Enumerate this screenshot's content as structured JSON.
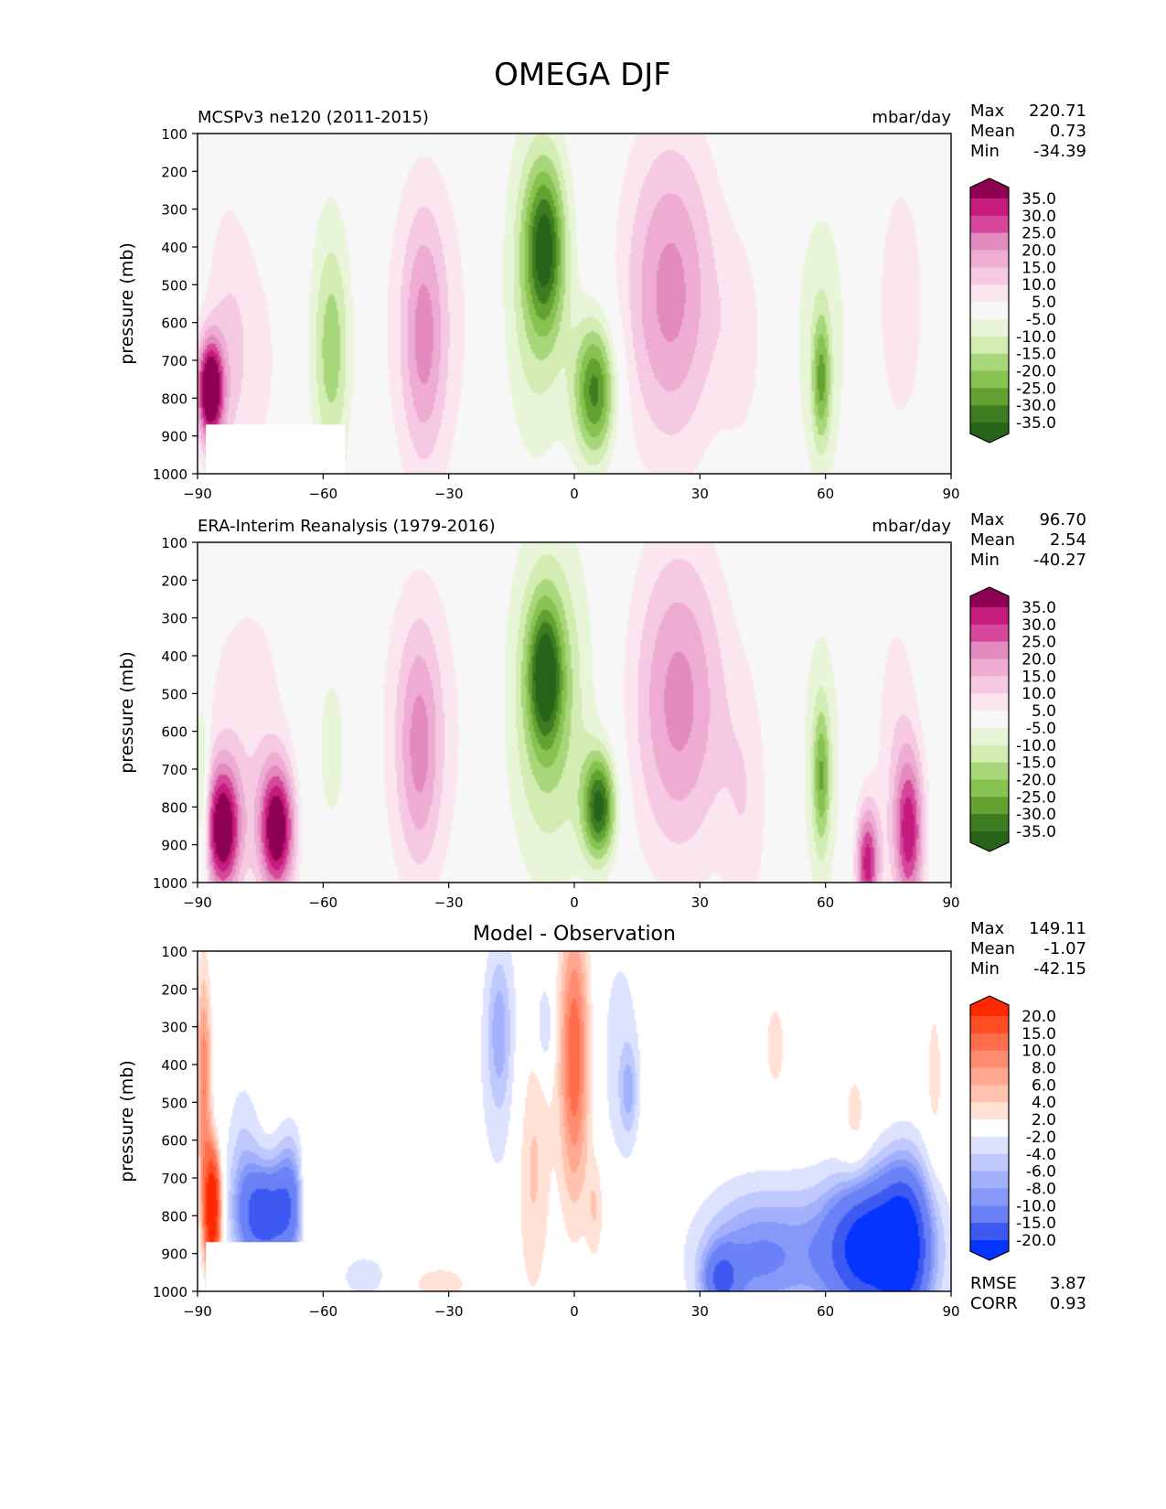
{
  "figure": {
    "title": "OMEGA DJF"
  },
  "chart_data": [
    {
      "type": "heatmap",
      "panel": "test",
      "title_left": "MCSPv3 ne120 (2011-2015)",
      "units": "mbar/day",
      "xlabel": "",
      "ylabel": "pressure (mb)",
      "x_ticks": [
        "−90",
        "−60",
        "−30",
        "0",
        "30",
        "60",
        "90"
      ],
      "x_tick_values": [
        -90,
        -60,
        -30,
        0,
        30,
        60,
        90
      ],
      "y_ticks": [
        "100",
        "200",
        "300",
        "400",
        "500",
        "600",
        "700",
        "800",
        "900",
        "1000"
      ],
      "y_tick_values": [
        100,
        200,
        300,
        400,
        500,
        600,
        700,
        800,
        900,
        1000
      ],
      "xlim": [
        -90,
        90
      ],
      "ylim": [
        1000,
        100
      ],
      "stats": [
        {
          "label": "Max",
          "value": "220.71"
        },
        {
          "label": "Mean",
          "value": "0.73"
        },
        {
          "label": "Min",
          "value": "-34.39"
        }
      ],
      "colorbar": {
        "labels": [
          "35.0",
          "30.0",
          "25.0",
          "20.0",
          "15.0",
          "10.0",
          "5.0",
          "-5.0",
          "-10.0",
          "-15.0",
          "-20.0",
          "-25.0",
          "-30.0",
          "-35.0"
        ],
        "colors": [
          "#8e0152",
          "#c51b7d",
          "#d6479b",
          "#e38bbf",
          "#eeacd3",
          "#f5c9e2",
          "#fbe6f0",
          "#f7f7f7",
          "#e9f5d9",
          "#d2ecb2",
          "#a8d67b",
          "#88c250",
          "#64a133",
          "#3d7c20",
          "#276419"
        ]
      },
      "features": [
        {
          "lat": -87,
          "p": 780,
          "w": 2.2,
          "h": 95,
          "v": 45
        },
        {
          "lat": -83,
          "p": 650,
          "w": 4,
          "h": 300,
          "v": 8
        },
        {
          "lat": -76,
          "p": 700,
          "w": 6,
          "h": 250,
          "v": 6
        },
        {
          "lat": -58,
          "p": 620,
          "w": 5,
          "h": 330,
          "v": -7
        },
        {
          "lat": -58,
          "p": 680,
          "w": 2.8,
          "h": 190,
          "v": -12
        },
        {
          "lat": -35,
          "p": 600,
          "w": 9,
          "h": 330,
          "v": 8
        },
        {
          "lat": -36,
          "p": 640,
          "w": 3.5,
          "h": 230,
          "v": 15
        },
        {
          "lat": -9,
          "p": 500,
          "w": 6,
          "h": 320,
          "v": -14
        },
        {
          "lat": -7,
          "p": 400,
          "w": 3.2,
          "h": 150,
          "v": -28
        },
        {
          "lat": 5,
          "p": 780,
          "w": 3.5,
          "h": 130,
          "v": -32
        },
        {
          "lat": 23,
          "p": 520,
          "w": 8,
          "h": 300,
          "v": 22
        },
        {
          "lat": 40,
          "p": 650,
          "w": 4,
          "h": 200,
          "v": 7
        },
        {
          "lat": 59,
          "p": 650,
          "w": 5.5,
          "h": 330,
          "v": -8
        },
        {
          "lat": 59,
          "p": 750,
          "w": 1.5,
          "h": 120,
          "v": -20
        },
        {
          "lat": 78,
          "p": 550,
          "w": 4,
          "h": 240,
          "v": 10
        }
      ]
    },
    {
      "type": "heatmap",
      "panel": "reference",
      "title_left": "ERA-Interim Reanalysis (1979-2016)",
      "units": "mbar/day",
      "xlabel": "",
      "ylabel": "pressure (mb)",
      "x_ticks": [
        "−90",
        "−60",
        "−30",
        "0",
        "30",
        "60",
        "90"
      ],
      "x_tick_values": [
        -90,
        -60,
        -30,
        0,
        30,
        60,
        90
      ],
      "y_ticks": [
        "100",
        "200",
        "300",
        "400",
        "500",
        "600",
        "700",
        "800",
        "900",
        "1000"
      ],
      "y_tick_values": [
        100,
        200,
        300,
        400,
        500,
        600,
        700,
        800,
        900,
        1000
      ],
      "xlim": [
        -90,
        90
      ],
      "ylim": [
        1000,
        100
      ],
      "stats": [
        {
          "label": "Max",
          "value": "96.70"
        },
        {
          "label": "Mean",
          "value": "2.54"
        },
        {
          "label": "Min",
          "value": "-40.27"
        }
      ],
      "colorbar": {
        "labels": [
          "35.0",
          "30.0",
          "25.0",
          "20.0",
          "15.0",
          "10.0",
          "5.0",
          "-5.0",
          "-10.0",
          "-15.0",
          "-20.0",
          "-25.0",
          "-30.0",
          "-35.0"
        ],
        "colors": [
          "#8e0152",
          "#c51b7d",
          "#d6479b",
          "#e38bbf",
          "#eeacd3",
          "#f5c9e2",
          "#fbe6f0",
          "#f7f7f7",
          "#e9f5d9",
          "#d2ecb2",
          "#a8d67b",
          "#88c250",
          "#64a133",
          "#3d7c20",
          "#276419"
        ]
      },
      "features": [
        {
          "lat": -89,
          "p": 780,
          "w": 1.2,
          "h": 200,
          "v": -18
        },
        {
          "lat": -84,
          "p": 860,
          "w": 3,
          "h": 120,
          "v": 40
        },
        {
          "lat": -71,
          "p": 860,
          "w": 3,
          "h": 120,
          "v": 40
        },
        {
          "lat": -78,
          "p": 620,
          "w": 9,
          "h": 330,
          "v": 8
        },
        {
          "lat": -58,
          "p": 640,
          "w": 6,
          "h": 300,
          "v": -7
        },
        {
          "lat": -37,
          "p": 600,
          "w": 9,
          "h": 330,
          "v": 8
        },
        {
          "lat": -37,
          "p": 640,
          "w": 3.5,
          "h": 220,
          "v": 15
        },
        {
          "lat": -6,
          "p": 520,
          "w": 7,
          "h": 320,
          "v": -18
        },
        {
          "lat": -7,
          "p": 450,
          "w": 2.8,
          "h": 130,
          "v": -28
        },
        {
          "lat": 6,
          "p": 800,
          "w": 2.8,
          "h": 100,
          "v": -36
        },
        {
          "lat": 25,
          "p": 520,
          "w": 8,
          "h": 300,
          "v": 22
        },
        {
          "lat": 41,
          "p": 800,
          "w": 4,
          "h": 250,
          "v": 8
        },
        {
          "lat": 59,
          "p": 680,
          "w": 4,
          "h": 320,
          "v": -8
        },
        {
          "lat": 59,
          "p": 720,
          "w": 1.4,
          "h": 130,
          "v": -18
        },
        {
          "lat": 70,
          "p": 950,
          "w": 2,
          "h": 110,
          "v": 32
        },
        {
          "lat": 80,
          "p": 870,
          "w": 2.5,
          "h": 150,
          "v": 30
        },
        {
          "lat": 77,
          "p": 640,
          "w": 4,
          "h": 300,
          "v": 8
        }
      ]
    },
    {
      "type": "heatmap",
      "panel": "difference",
      "title_center": "Model - Observation",
      "xlabel": "",
      "ylabel": "pressure (mb)",
      "x_ticks": [
        "−90",
        "−60",
        "−30",
        "0",
        "30",
        "60",
        "90"
      ],
      "x_tick_values": [
        -90,
        -60,
        -30,
        0,
        30,
        60,
        90
      ],
      "y_ticks": [
        "100",
        "200",
        "300",
        "400",
        "500",
        "600",
        "700",
        "800",
        "900",
        "1000"
      ],
      "y_tick_values": [
        100,
        200,
        300,
        400,
        500,
        600,
        700,
        800,
        900,
        1000
      ],
      "xlim": [
        -90,
        90
      ],
      "ylim": [
        1000,
        100
      ],
      "stats": [
        {
          "label": "Max",
          "value": "149.11"
        },
        {
          "label": "Mean",
          "value": "-1.07"
        },
        {
          "label": "Min",
          "value": "-42.15"
        }
      ],
      "metrics": [
        {
          "label": "RMSE",
          "value": "3.87"
        },
        {
          "label": "CORR",
          "value": "0.93"
        }
      ],
      "colorbar": {
        "labels": [
          "20.0",
          "15.0",
          "10.0",
          "8.0",
          "6.0",
          "4.0",
          "2.0",
          "-2.0",
          "-4.0",
          "-6.0",
          "-8.0",
          "-10.0",
          "-15.0",
          "-20.0"
        ],
        "colors": [
          "#ff2800",
          "#ff4c22",
          "#ff6e4c",
          "#ff8c70",
          "#ffa88f",
          "#ffc3b0",
          "#ffe1d6",
          "#ffffff",
          "#dde3ff",
          "#bfc9fe",
          "#a3b1fc",
          "#8699f9",
          "#6a82f6",
          "#3d59f2",
          "#0533ff"
        ]
      },
      "features": [
        {
          "lat": -86.5,
          "p": 780,
          "w": 1.3,
          "h": 100,
          "v": 30
        },
        {
          "lat": -88.5,
          "p": 450,
          "w": 1.2,
          "h": 200,
          "v": 10
        },
        {
          "lat": -74,
          "p": 800,
          "w": 4,
          "h": 90,
          "v": -18
        },
        {
          "lat": -79,
          "p": 700,
          "w": 3,
          "h": 170,
          "v": -5
        },
        {
          "lat": -68,
          "p": 760,
          "w": 2.5,
          "h": 120,
          "v": -10
        },
        {
          "lat": -64,
          "p": 750,
          "w": 1.2,
          "h": 100,
          "v": 4
        },
        {
          "lat": -50,
          "p": 960,
          "w": 5,
          "h": 50,
          "v": -3
        },
        {
          "lat": -32,
          "p": 980,
          "w": 6,
          "h": 40,
          "v": 3
        },
        {
          "lat": -17,
          "p": 400,
          "w": 5,
          "h": 300,
          "v": -3
        },
        {
          "lat": -18,
          "p": 310,
          "w": 1.8,
          "h": 130,
          "v": -5
        },
        {
          "lat": -10,
          "p": 650,
          "w": 3,
          "h": 260,
          "v": 5
        },
        {
          "lat": -7,
          "p": 300,
          "w": 1.5,
          "h": 80,
          "v": -5
        },
        {
          "lat": 0,
          "p": 380,
          "w": 2.5,
          "h": 260,
          "v": 12
        },
        {
          "lat": 5,
          "p": 780,
          "w": 1.5,
          "h": 100,
          "v": 4
        },
        {
          "lat": 11,
          "p": 380,
          "w": 4,
          "h": 250,
          "v": -3
        },
        {
          "lat": 13,
          "p": 470,
          "w": 1.4,
          "h": 80,
          "v": -5
        },
        {
          "lat": 62,
          "p": 900,
          "w": 18,
          "h": 130,
          "v": -8
        },
        {
          "lat": 70,
          "p": 880,
          "w": 6,
          "h": 120,
          "v": -18
        },
        {
          "lat": 79,
          "p": 880,
          "w": 4,
          "h": 150,
          "v": -20
        },
        {
          "lat": 42,
          "p": 920,
          "w": 8,
          "h": 120,
          "v": -6
        },
        {
          "lat": 35,
          "p": 970,
          "w": 3,
          "h": 60,
          "v": -12
        },
        {
          "lat": 67,
          "p": 570,
          "w": 2.5,
          "h": 130,
          "v": 3
        },
        {
          "lat": 86,
          "p": 430,
          "w": 1.5,
          "h": 150,
          "v": 3
        },
        {
          "lat": 48,
          "p": 350,
          "w": 2,
          "h": 100,
          "v": 3
        }
      ]
    }
  ]
}
